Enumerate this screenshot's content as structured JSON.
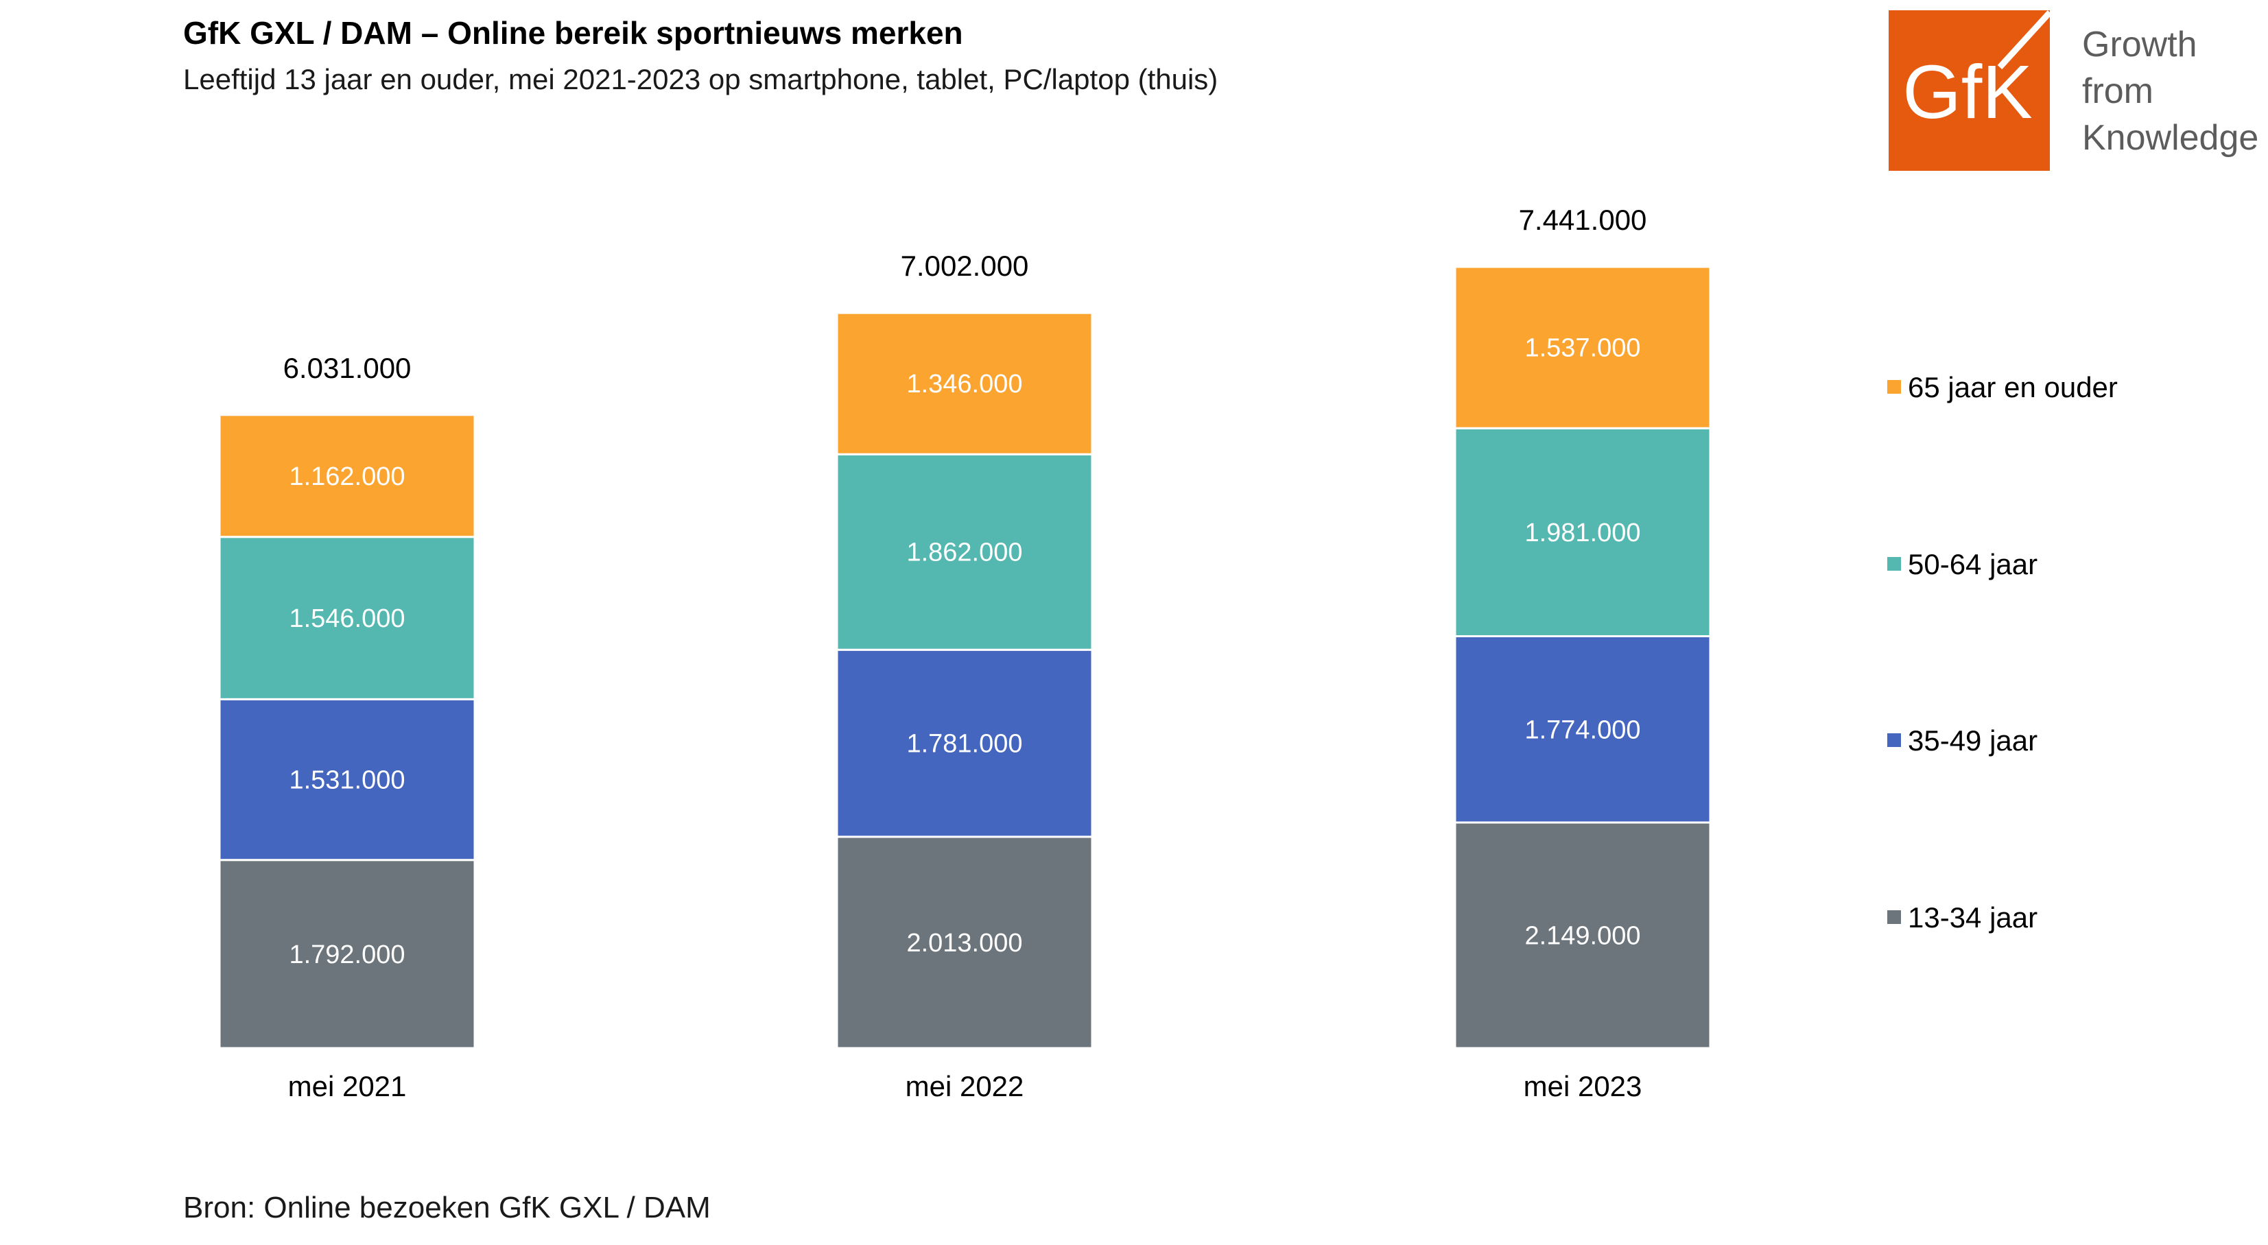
{
  "header": {
    "title": "GfK GXL / DAM – Online bereik sportnieuws merken",
    "subtitle": "Leeftijd 13 jaar en ouder, mei 2021-2023 op smartphone, tablet, PC/laptop (thuis)"
  },
  "logo": {
    "mark": "GfK",
    "tagline": [
      "Growth",
      "from",
      "Knowledge"
    ],
    "color": "#E55A0E"
  },
  "source": "Bron: Online bezoeken GfK GXL / DAM",
  "chart_data": {
    "type": "bar",
    "stacked": true,
    "categories": [
      "mei 2021",
      "mei 2022",
      "mei 2023"
    ],
    "series": [
      {
        "name": "13-34 jaar",
        "color": "#6C757B",
        "values": [
          1792000,
          2013000,
          2149000
        ],
        "labels": [
          "1.792.000",
          "2.013.000",
          "2.149.000"
        ]
      },
      {
        "name": "35-49 jaar",
        "color": "#4466BF",
        "values": [
          1531000,
          1781000,
          1774000
        ],
        "labels": [
          "1.531.000",
          "1.781.000",
          "1.774.000"
        ]
      },
      {
        "name": "50-64 jaar",
        "color": "#54B8B1",
        "values": [
          1546000,
          1862000,
          1981000
        ],
        "labels": [
          "1.546.000",
          "1.862.000",
          "1.981.000"
        ]
      },
      {
        "name": "65 jaar en ouder",
        "color": "#FBA430",
        "values": [
          1162000,
          1346000,
          1537000
        ],
        "labels": [
          "1.162.000",
          "1.346.000",
          "1.537.000"
        ]
      }
    ],
    "totals": [
      6031000,
      7002000,
      7441000
    ],
    "total_labels": [
      "6.031.000",
      "7.002.000",
      "7.441.000"
    ],
    "legend_position": "right",
    "grid": false
  }
}
